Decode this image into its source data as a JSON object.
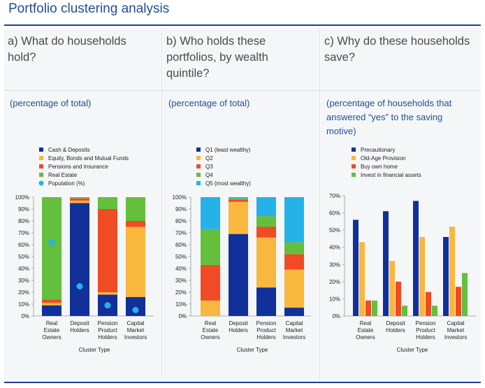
{
  "page": {
    "title": "Portfolio clustering analysis",
    "panels": [
      {
        "heading_line1": "a) What do households",
        "heading_line2": "hold?",
        "heading_line3": "",
        "sub_line1": "(percentage of total)",
        "sub_line2": "",
        "sub_line3": ""
      },
      {
        "heading_line1": "b) Who holds these",
        "heading_line2": "portfolios, by wealth",
        "heading_line3": "quintile?",
        "sub_line1": "(percentage of total)",
        "sub_line2": "",
        "sub_line3": ""
      },
      {
        "heading_line1": "c) Why do these households",
        "heading_line2": "save?",
        "heading_line3": "",
        "sub_line1": "(percentage of households that",
        "sub_line2": "answered “yes” to the saving",
        "sub_line3": "motive)"
      }
    ]
  },
  "chart_data": [
    {
      "type": "bar",
      "stacked": true,
      "title": "",
      "xlabel": "Cluster Type",
      "ylabel": "",
      "ylim": [
        0,
        100
      ],
      "yticks": [
        "0%",
        "10%",
        "20%",
        "30%",
        "40%",
        "50%",
        "60%",
        "70%",
        "80%",
        "90%",
        "100%"
      ],
      "categories": [
        [
          "Real",
          "Estate",
          "Owners"
        ],
        [
          "Deposit",
          "Holders"
        ],
        [
          "Pension",
          "Product",
          "Holders"
        ],
        [
          "Capital",
          "Market",
          "Investors"
        ]
      ],
      "series": [
        {
          "name": "Cash & Deposits",
          "color": "#12309a",
          "values": [
            9,
            95,
            18,
            16
          ]
        },
        {
          "name": "Equity, Bonds and Mutual Funds",
          "color": "#f9b73d",
          "values": [
            2,
            2,
            2,
            59
          ]
        },
        {
          "name": "Pensions and Insurance",
          "color": "#f04b24",
          "values": [
            3,
            2,
            70,
            5
          ]
        },
        {
          "name": "Real Estate",
          "color": "#63bf3c",
          "values": [
            86,
            1,
            10,
            20
          ]
        }
      ],
      "markers": {
        "name": "Population (%)",
        "color": "#25b2e8",
        "values": [
          62,
          25,
          9,
          5
        ]
      },
      "grid": false,
      "legend": "top"
    },
    {
      "type": "bar",
      "stacked": true,
      "title": "",
      "xlabel": "Cluster Type",
      "ylabel": "",
      "ylim": [
        0,
        100
      ],
      "yticks": [
        "0%",
        "10%",
        "20%",
        "30%",
        "40%",
        "50%",
        "60%",
        "70%",
        "80%",
        "90%",
        "100%"
      ],
      "categories": [
        [
          "Real",
          "Estate",
          "Owners"
        ],
        [
          "Deposit",
          "Holders"
        ],
        [
          "Pension",
          "Product",
          "Holders"
        ],
        [
          "Capital",
          "Market",
          "Investors"
        ]
      ],
      "series": [
        {
          "name": "Q1 (least wealthy)",
          "color": "#12309a",
          "values": [
            0,
            69,
            24,
            7
          ]
        },
        {
          "name": "Q2",
          "color": "#f9b73d",
          "values": [
            13,
            27,
            42,
            32
          ]
        },
        {
          "name": "Q3",
          "color": "#f04b24",
          "values": [
            30,
            2,
            9,
            13
          ]
        },
        {
          "name": "Q4",
          "color": "#63bf3c",
          "values": [
            30,
            1,
            9,
            10
          ]
        },
        {
          "name": "Q5 (most wealthy)",
          "color": "#25b2e8",
          "values": [
            27,
            1,
            16,
            38
          ]
        }
      ],
      "grid": false,
      "legend": "top"
    },
    {
      "type": "bar",
      "stacked": false,
      "title": "",
      "xlabel": "Cluster Type",
      "ylabel": "",
      "ylim": [
        0,
        70
      ],
      "yticks": [
        "0%",
        "10%",
        "20%",
        "30%",
        "40%",
        "50%",
        "60%",
        "70%"
      ],
      "categories": [
        [
          "Real",
          "Estate",
          "Owners"
        ],
        [
          "Deposit",
          "Holders"
        ],
        [
          "Pension",
          "Product",
          "Holders"
        ],
        [
          "Capital",
          "Market",
          "Investors"
        ]
      ],
      "series": [
        {
          "name": "Precautionary",
          "color": "#12309a",
          "values": [
            56,
            61,
            67,
            46
          ]
        },
        {
          "name": "Old-Age Provision",
          "color": "#f9b73d",
          "values": [
            43,
            32,
            46,
            52
          ]
        },
        {
          "name": "Buy own home",
          "color": "#f04b24",
          "values": [
            9,
            20,
            14,
            17
          ]
        },
        {
          "name": "Invest in financial assets",
          "color": "#63bf3c",
          "values": [
            9,
            6,
            6,
            25
          ]
        }
      ],
      "grid": false,
      "legend": "top"
    }
  ]
}
